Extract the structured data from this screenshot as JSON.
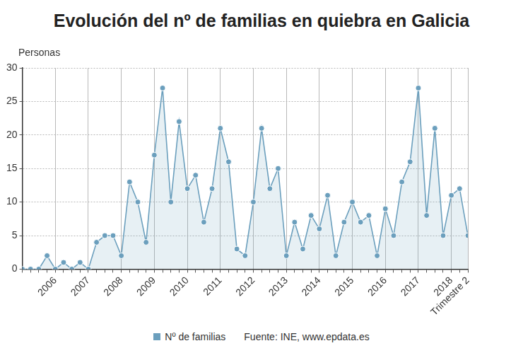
{
  "chart_data": {
    "type": "line",
    "title": "Evolución del nº de familias en quiebra en Galicia",
    "y_label": "Personas",
    "source": "Fuente: INE, www.epdata.es",
    "categories": [
      null,
      null,
      null,
      null,
      "2006",
      null,
      null,
      null,
      "2007",
      null,
      null,
      null,
      "2008",
      null,
      null,
      null,
      "2009",
      null,
      null,
      null,
      "2010",
      null,
      null,
      null,
      "2011",
      null,
      null,
      null,
      "2012",
      null,
      null,
      null,
      "2013",
      null,
      null,
      null,
      "2014",
      null,
      null,
      null,
      "2015",
      null,
      null,
      null,
      "2016",
      null,
      null,
      null,
      "2017",
      null,
      null,
      null,
      "2018",
      null,
      "Trimestre 2"
    ],
    "series": [
      {
        "name": "Nº de familias",
        "color": "#6b9fbd",
        "values": [
          0,
          0,
          0,
          2,
          0,
          1,
          0,
          1,
          0,
          4,
          5,
          5,
          2,
          13,
          10,
          4,
          17,
          27,
          10,
          22,
          12,
          14,
          7,
          12,
          21,
          16,
          3,
          2,
          10,
          21,
          12,
          15,
          2,
          7,
          3,
          8,
          6,
          11,
          2,
          7,
          10,
          7,
          8,
          2,
          9,
          5,
          13,
          16,
          27,
          8,
          21,
          5,
          11,
          12,
          5
        ]
      }
    ],
    "ylim": [
      0,
      30
    ],
    "yticks": [
      0,
      5,
      10,
      15,
      20,
      25,
      30
    ],
    "grid": true,
    "legend": "bottom",
    "marker": "circle"
  }
}
